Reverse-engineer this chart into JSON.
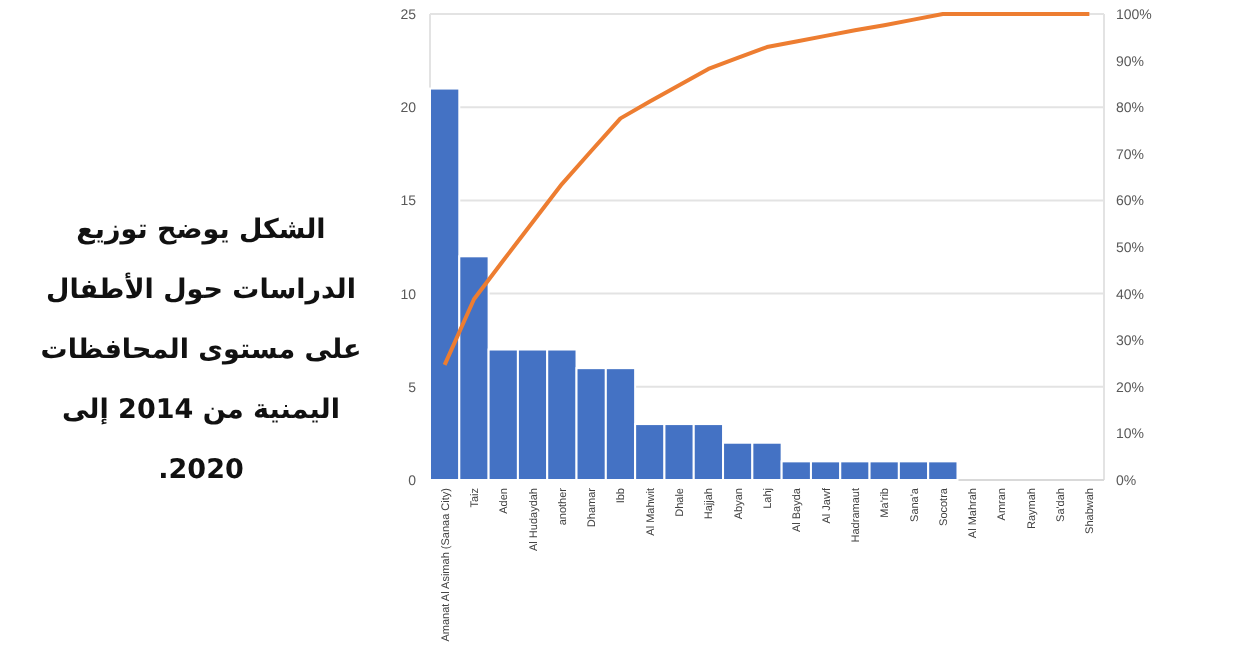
{
  "chart_data": {
    "type": "bar",
    "title": "الشكل يوضح توزيع الدراسات حول الأطفال على مستوى المحافظات اليمنية من 2014 إلى 2020.",
    "categories": [
      "Amanat Al Asimah (Sanaa City)",
      "Taiz",
      "Aden",
      "Al Hudaydah",
      "another",
      "Dhamar",
      "Ibb",
      "Al Mahwit",
      "Dhale",
      "Hajjah",
      "Abyan",
      "Lahj",
      "Al Bayda",
      "Al Jawf",
      "Hadramaut",
      "Ma'rib",
      "Sana'a",
      "Socotra",
      "Al Mahrah",
      "Amran",
      "Raymah",
      "Sa'dah",
      "Shabwah"
    ],
    "series": [
      {
        "color": "#4472c4",
        "values": [
          21,
          12,
          7,
          7,
          7,
          6,
          6,
          3,
          3,
          3,
          2,
          2,
          1,
          1,
          1,
          1,
          1,
          1,
          0,
          0,
          0,
          0,
          0
        ]
      },
      {
        "type": "line",
        "axis": "y2",
        "color": "#ed7d31",
        "values": [
          24.7,
          38.8,
          47.1,
          55.3,
          63.5,
          70.6,
          77.6,
          81.2,
          84.7,
          88.2,
          90.6,
          92.9,
          94.1,
          95.3,
          96.5,
          97.6,
          98.8,
          100,
          100,
          100,
          100,
          100,
          100
        ]
      }
    ],
    "ylim": [
      0,
      25
    ],
    "yticks": [
      0,
      5,
      10,
      15,
      20,
      25
    ],
    "y2lim": [
      0,
      100
    ],
    "y2ticks": [
      {
        "value": 0,
        "label": "0%"
      },
      {
        "value": 10,
        "label": "10%"
      },
      {
        "value": 20,
        "label": "20%"
      },
      {
        "value": 30,
        "label": "30%"
      },
      {
        "value": 40,
        "label": "40%"
      },
      {
        "value": 50,
        "label": "50%"
      },
      {
        "value": 60,
        "label": "60%"
      },
      {
        "value": 70,
        "label": "70%"
      },
      {
        "value": 80,
        "label": "80%"
      },
      {
        "value": 90,
        "label": "90%"
      },
      {
        "value": 100,
        "label": "100%"
      }
    ],
    "grid": "y"
  }
}
